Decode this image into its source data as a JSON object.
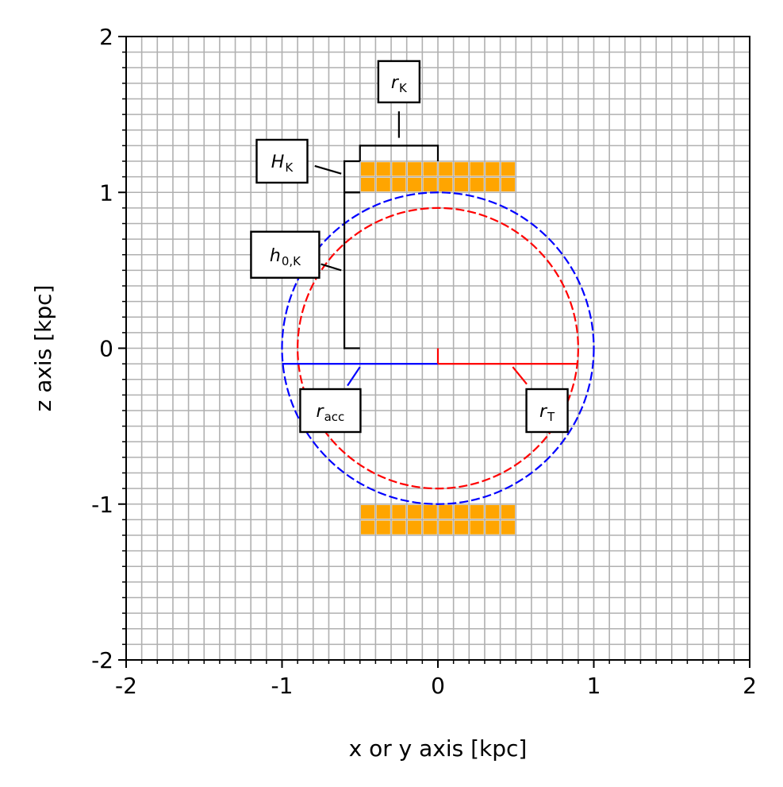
{
  "chart_data": {
    "type": "diagram",
    "xlabel": "x or y axis [kpc]",
    "ylabel": "z axis [kpc]",
    "xlim": [
      -2,
      2
    ],
    "ylim": [
      -2,
      2
    ],
    "xticks": [
      -2,
      -1,
      0,
      1,
      2
    ],
    "yticks": [
      -2,
      -1,
      0,
      1,
      2
    ],
    "tick_labels_x": [
      "-2",
      "-1",
      "0",
      "1",
      "2"
    ],
    "tick_labels_y": [
      "-2",
      "-1",
      "0",
      "1",
      "2"
    ],
    "grid": true,
    "grid_step": 0.1,
    "circles": [
      {
        "name": "r_acc",
        "center": [
          0,
          0
        ],
        "radius": 1.0,
        "color": "#0000ff",
        "style": "dashed"
      },
      {
        "name": "r_T",
        "center": [
          0,
          0
        ],
        "radius": 0.9,
        "color": "#ff0000",
        "style": "dashed"
      }
    ],
    "disks": [
      {
        "x_range": [
          -0.5,
          0.5
        ],
        "z_range": [
          1.0,
          1.2
        ],
        "color": "#ffa500"
      },
      {
        "x_range": [
          -0.5,
          0.5
        ],
        "z_range": [
          -1.2,
          -1.0
        ],
        "color": "#ffa500"
      }
    ],
    "annotations": [
      {
        "id": "rK",
        "main": "r",
        "sub": "K"
      },
      {
        "id": "HK",
        "main": "H",
        "sub": "K"
      },
      {
        "id": "h0K",
        "main": "h",
        "sub": "0,K"
      },
      {
        "id": "racc",
        "main": "r",
        "sub": "acc"
      },
      {
        "id": "rT",
        "main": "r",
        "sub": "T"
      }
    ]
  }
}
